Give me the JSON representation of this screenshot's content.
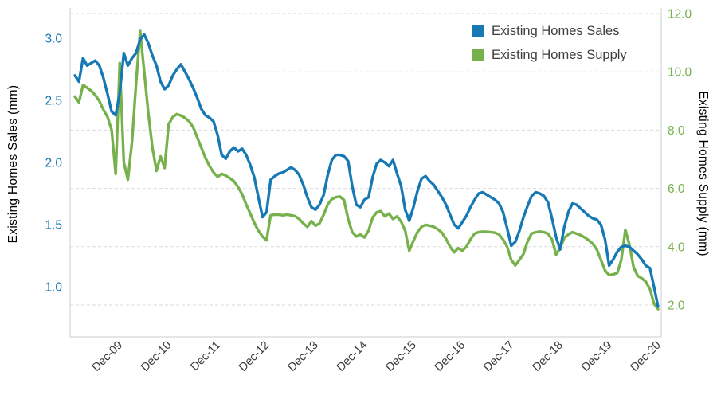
{
  "chart_data": {
    "type": "line",
    "x_frequency": "monthly",
    "x_start": "Jan-2009",
    "x_end": "Dec-2020",
    "x_tick_labels": [
      "Dec-09",
      "Dec-10",
      "Dec-11",
      "Dec-12",
      "Dec-13",
      "Dec-14",
      "Dec-15",
      "Dec-16",
      "Dec-17",
      "Dec-18",
      "Dec-19",
      "Dec-20"
    ],
    "ylabel_left": "Existing Homes Sales (mm)",
    "ylabel_right": "Existing Homes Supply (mm)",
    "y_ticks_left": [
      "3.0",
      "2.5",
      "2.0",
      "1.5",
      "1.0"
    ],
    "y_ticks_right": [
      "12.0",
      "10.0",
      "8.0",
      "6.0",
      "4.0",
      "2.0"
    ],
    "ylim_left": [
      0.6,
      3.25
    ],
    "ylim_right": [
      0.9,
      12.2
    ],
    "grid": "horizontal-dashed",
    "legend_position": "top-right",
    "series": [
      {
        "name": "Existing Homes Sales",
        "axis": "left",
        "color": "#1779b4",
        "values": [
          2.7,
          2.65,
          2.84,
          2.78,
          2.8,
          2.82,
          2.78,
          2.68,
          2.55,
          2.41,
          2.38,
          2.56,
          2.88,
          2.78,
          2.84,
          2.88,
          2.99,
          3.03,
          2.96,
          2.86,
          2.78,
          2.65,
          2.59,
          2.62,
          2.7,
          2.75,
          2.79,
          2.73,
          2.67,
          2.6,
          2.52,
          2.43,
          2.38,
          2.36,
          2.33,
          2.22,
          2.06,
          2.03,
          2.09,
          2.12,
          2.09,
          2.11,
          2.06,
          1.98,
          1.88,
          1.72,
          1.56,
          1.6,
          1.86,
          1.89,
          1.91,
          1.92,
          1.94,
          1.96,
          1.94,
          1.9,
          1.82,
          1.72,
          1.64,
          1.62,
          1.66,
          1.74,
          1.9,
          2.02,
          2.06,
          2.06,
          2.05,
          2.01,
          1.81,
          1.66,
          1.64,
          1.7,
          1.72,
          1.88,
          1.99,
          2.02,
          2.0,
          1.97,
          2.02,
          1.91,
          1.81,
          1.62,
          1.53,
          1.64,
          1.77,
          1.87,
          1.89,
          1.85,
          1.82,
          1.77,
          1.72,
          1.66,
          1.58,
          1.5,
          1.47,
          1.52,
          1.57,
          1.64,
          1.7,
          1.75,
          1.76,
          1.74,
          1.72,
          1.7,
          1.67,
          1.6,
          1.47,
          1.33,
          1.36,
          1.45,
          1.56,
          1.65,
          1.73,
          1.76,
          1.75,
          1.73,
          1.68,
          1.55,
          1.4,
          1.3,
          1.48,
          1.6,
          1.67,
          1.66,
          1.63,
          1.6,
          1.57,
          1.55,
          1.54,
          1.5,
          1.38,
          1.17,
          1.22,
          1.28,
          1.32,
          1.33,
          1.32,
          1.29,
          1.26,
          1.22,
          1.17,
          1.15,
          1.0,
          0.84
        ]
      },
      {
        "name": "Existing Homes Supply",
        "axis": "right",
        "color": "#77b14b",
        "values": [
          9.15,
          8.95,
          9.55,
          9.45,
          9.35,
          9.2,
          9.0,
          8.7,
          8.45,
          8.0,
          6.5,
          10.3,
          6.9,
          6.3,
          7.6,
          9.6,
          11.4,
          10.0,
          8.6,
          7.4,
          6.6,
          7.1,
          6.7,
          8.2,
          8.45,
          8.55,
          8.5,
          8.42,
          8.3,
          8.1,
          7.75,
          7.4,
          7.05,
          6.77,
          6.55,
          6.4,
          6.5,
          6.44,
          6.35,
          6.25,
          6.05,
          5.8,
          5.45,
          5.14,
          4.82,
          4.55,
          4.35,
          4.22,
          5.08,
          5.1,
          5.1,
          5.08,
          5.1,
          5.08,
          5.05,
          4.95,
          4.8,
          4.68,
          4.88,
          4.72,
          4.8,
          5.1,
          5.45,
          5.63,
          5.7,
          5.72,
          5.6,
          4.95,
          4.5,
          4.35,
          4.42,
          4.32,
          4.55,
          5.0,
          5.18,
          5.22,
          5.04,
          5.14,
          4.95,
          5.04,
          4.86,
          4.55,
          3.86,
          4.2,
          4.5,
          4.68,
          4.75,
          4.72,
          4.68,
          4.6,
          4.48,
          4.27,
          4.0,
          3.81,
          3.95,
          3.86,
          4.0,
          4.25,
          4.45,
          4.5,
          4.52,
          4.51,
          4.5,
          4.48,
          4.42,
          4.25,
          4.0,
          3.55,
          3.36,
          3.55,
          3.75,
          4.18,
          4.45,
          4.5,
          4.52,
          4.5,
          4.45,
          4.25,
          3.73,
          3.95,
          4.3,
          4.42,
          4.5,
          4.45,
          4.4,
          4.32,
          4.22,
          4.1,
          3.9,
          3.55,
          3.18,
          3.03,
          3.05,
          3.1,
          3.55,
          4.58,
          4.05,
          3.3,
          3.0,
          2.92,
          2.8,
          2.55,
          2.05,
          1.86
        ]
      }
    ]
  },
  "colors": {
    "grid": "#d8dbe2",
    "plot_border": "#c9cdd2",
    "x_tick_text": "#3b3b3b",
    "background": "#ffffff"
  }
}
